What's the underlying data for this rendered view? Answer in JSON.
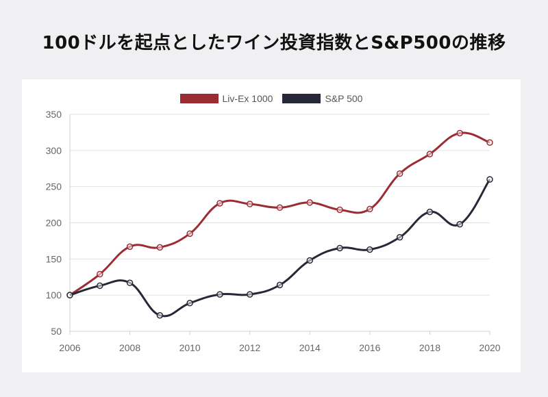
{
  "page": {
    "title": "100ドルを起点としたワイン投資指数とS&P500の推移"
  },
  "chart_data": {
    "type": "line",
    "title": "100ドルを起点としたワイン投資指数とS&P500の推移",
    "xlabel": "",
    "ylabel": "",
    "x": [
      2006,
      2007,
      2008,
      2009,
      2010,
      2011,
      2012,
      2013,
      2014,
      2015,
      2016,
      2017,
      2018,
      2019,
      2020
    ],
    "x_tick_labels": [
      "2006",
      "2008",
      "2010",
      "2012",
      "2014",
      "2016",
      "2018",
      "2020"
    ],
    "y_tick_labels": [
      "350",
      "300",
      "250",
      "200",
      "150",
      "100",
      "50"
    ],
    "ylim": [
      50,
      350
    ],
    "xlim": [
      2006,
      2020
    ],
    "grid": "horizontal",
    "legend_position": "top-center",
    "series": [
      {
        "name": "Liv-Ex 1000",
        "color": "#9b2c33",
        "values": [
          100,
          129,
          167,
          166,
          185,
          227,
          226,
          221,
          228,
          218,
          219,
          268,
          295,
          324,
          311
        ]
      },
      {
        "name": "S&P 500",
        "color": "#262838",
        "values": [
          100,
          113,
          117,
          72,
          89,
          101,
          101,
          114,
          148,
          165,
          163,
          180,
          215,
          198,
          260
        ]
      }
    ]
  }
}
